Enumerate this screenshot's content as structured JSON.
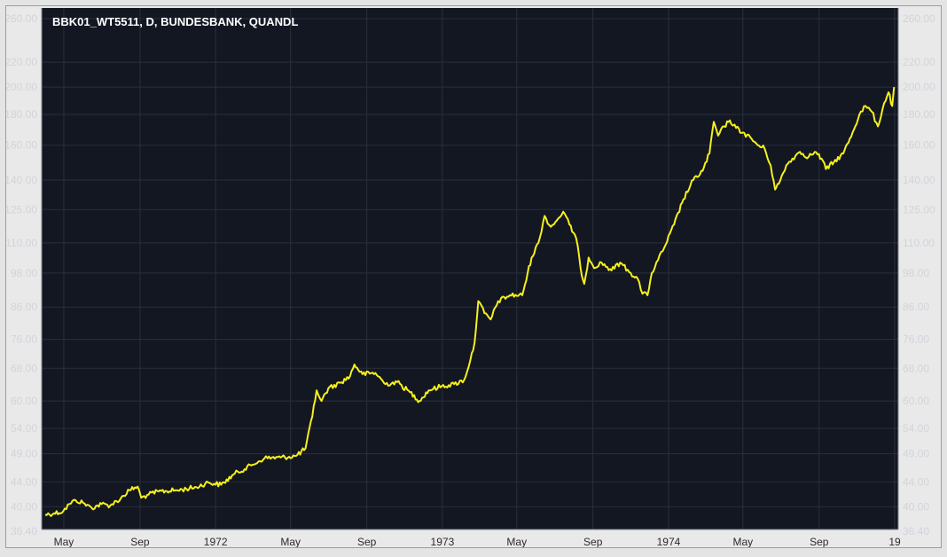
{
  "chart_data": {
    "type": "line",
    "title": "BBK01_WT5511, D, BUNDESBANK, QUANDL",
    "y_scale": "log",
    "ylim": [
      36.4,
      262
    ],
    "y_ticks": [
      260,
      220,
      200,
      180,
      160,
      140,
      125,
      110,
      98,
      86,
      76,
      68,
      60,
      54,
      49,
      44,
      40,
      36.4
    ],
    "y_tick_labels": [
      "260.00",
      "220.00",
      "200.00",
      "180.00",
      "160.00",
      "140.00",
      "125.00",
      "110.00",
      "98.00",
      "86.00",
      "76.00",
      "68.00",
      "60.00",
      "54.00",
      "49.00",
      "44.00",
      "40.00",
      "36.40"
    ],
    "x_axis": "time",
    "xlim": [
      "1971-04-01",
      "1974-12-31"
    ],
    "x_ticks": [
      {
        "date": "1971-05-01",
        "label": "May"
      },
      {
        "date": "1971-09-01",
        "label": "Sep"
      },
      {
        "date": "1972-01-01",
        "label": "1972"
      },
      {
        "date": "1972-05-01",
        "label": "May"
      },
      {
        "date": "1972-09-01",
        "label": "Sep"
      },
      {
        "date": "1973-01-01",
        "label": "1973"
      },
      {
        "date": "1973-05-01",
        "label": "May"
      },
      {
        "date": "1973-09-01",
        "label": "Sep"
      },
      {
        "date": "1974-01-01",
        "label": "1974"
      },
      {
        "date": "1974-05-01",
        "label": "May"
      },
      {
        "date": "1974-09-01",
        "label": "Sep"
      },
      {
        "date": "1975-01-01",
        "label": "19"
      }
    ],
    "grid": true,
    "background": "#131722",
    "series": [
      {
        "color": "#f5f01e",
        "points": [
          [
            "1971-04-01",
            38.8
          ],
          [
            "1971-04-15",
            39.0
          ],
          [
            "1971-04-30",
            39.3
          ],
          [
            "1971-05-10",
            40.4
          ],
          [
            "1971-05-20",
            41.0
          ],
          [
            "1971-06-01",
            40.6
          ],
          [
            "1971-06-15",
            39.8
          ],
          [
            "1971-07-01",
            40.4
          ],
          [
            "1971-07-15",
            40.2
          ],
          [
            "1971-08-01",
            41.3
          ],
          [
            "1971-08-15",
            42.6
          ],
          [
            "1971-08-28",
            43.2
          ],
          [
            "1971-09-03",
            41.4
          ],
          [
            "1971-09-15",
            41.9
          ],
          [
            "1971-10-01",
            42.4
          ],
          [
            "1971-11-01",
            42.6
          ],
          [
            "1971-12-01",
            43.1
          ],
          [
            "1971-12-20",
            43.9
          ],
          [
            "1972-01-10",
            43.5
          ],
          [
            "1972-02-01",
            45.4
          ],
          [
            "1972-03-01",
            47.0
          ],
          [
            "1972-03-20",
            48.2
          ],
          [
            "1972-04-15",
            48.3
          ],
          [
            "1972-05-10",
            48.6
          ],
          [
            "1972-05-25",
            50.0
          ],
          [
            "1972-06-05",
            56.5
          ],
          [
            "1972-06-12",
            62.5
          ],
          [
            "1972-06-20",
            60.0
          ],
          [
            "1972-07-01",
            63.0
          ],
          [
            "1972-07-20",
            64.3
          ],
          [
            "1972-08-05",
            66.0
          ],
          [
            "1972-08-12",
            69.0
          ],
          [
            "1972-08-25",
            66.5
          ],
          [
            "1972-09-15",
            66.8
          ],
          [
            "1972-10-01",
            64.0
          ],
          [
            "1972-10-20",
            64.5
          ],
          [
            "1972-11-10",
            62.0
          ],
          [
            "1972-11-25",
            60.0
          ],
          [
            "1972-12-10",
            62.5
          ],
          [
            "1972-12-31",
            63.5
          ],
          [
            "1973-01-20",
            64.0
          ],
          [
            "1973-02-05",
            65.0
          ],
          [
            "1973-02-15",
            70.0
          ],
          [
            "1973-02-22",
            75.0
          ],
          [
            "1973-02-28",
            88.0
          ],
          [
            "1973-03-10",
            84.0
          ],
          [
            "1973-03-20",
            82.0
          ],
          [
            "1973-04-01",
            88.0
          ],
          [
            "1973-04-20",
            90.0
          ],
          [
            "1973-05-10",
            90.0
          ],
          [
            "1973-05-25",
            104.0
          ],
          [
            "1973-06-05",
            110.0
          ],
          [
            "1973-06-15",
            122.0
          ],
          [
            "1973-06-25",
            117.0
          ],
          [
            "1973-07-05",
            120.0
          ],
          [
            "1973-07-15",
            124.0
          ],
          [
            "1973-07-25",
            118.0
          ],
          [
            "1973-08-05",
            112.0
          ],
          [
            "1973-08-12",
            100.0
          ],
          [
            "1973-08-18",
            94.0
          ],
          [
            "1973-08-25",
            104.0
          ],
          [
            "1973-09-05",
            100.0
          ],
          [
            "1973-09-15",
            102.0
          ],
          [
            "1973-10-01",
            99.0
          ],
          [
            "1973-10-15",
            102.0
          ],
          [
            "1973-11-01",
            98.0
          ],
          [
            "1973-11-12",
            96.0
          ],
          [
            "1973-11-20",
            90.5
          ],
          [
            "1973-11-28",
            90.0
          ],
          [
            "1973-12-05",
            98.0
          ],
          [
            "1973-12-15",
            103.0
          ],
          [
            "1973-12-25",
            108.0
          ],
          [
            "1974-01-10",
            118.0
          ],
          [
            "1974-01-25",
            130.0
          ],
          [
            "1974-02-10",
            140.0
          ],
          [
            "1974-02-25",
            145.0
          ],
          [
            "1974-03-08",
            155.0
          ],
          [
            "1974-03-15",
            175.0
          ],
          [
            "1974-03-22",
            166.0
          ],
          [
            "1974-04-01",
            172.0
          ],
          [
            "1974-04-10",
            176.0
          ],
          [
            "1974-04-20",
            171.0
          ],
          [
            "1974-05-01",
            168.0
          ],
          [
            "1974-05-15",
            164.0
          ],
          [
            "1974-05-25",
            160.0
          ],
          [
            "1974-06-05",
            158.0
          ],
          [
            "1974-06-15",
            148.0
          ],
          [
            "1974-06-22",
            135.0
          ],
          [
            "1974-06-28",
            138.0
          ],
          [
            "1974-07-10",
            148.0
          ],
          [
            "1974-07-20",
            152.0
          ],
          [
            "1974-08-01",
            156.0
          ],
          [
            "1974-08-15",
            153.0
          ],
          [
            "1974-08-25",
            156.0
          ],
          [
            "1974-09-05",
            152.0
          ],
          [
            "1974-09-12",
            146.0
          ],
          [
            "1974-09-25",
            150.0
          ],
          [
            "1974-10-10",
            155.0
          ],
          [
            "1974-10-25",
            168.0
          ],
          [
            "1974-11-05",
            180.0
          ],
          [
            "1974-11-15",
            186.0
          ],
          [
            "1974-11-25",
            182.0
          ],
          [
            "1974-12-05",
            172.0
          ],
          [
            "1974-12-15",
            188.0
          ],
          [
            "1974-12-22",
            196.0
          ],
          [
            "1974-12-28",
            186.0
          ],
          [
            "1974-12-31",
            200.0
          ]
        ]
      }
    ]
  }
}
